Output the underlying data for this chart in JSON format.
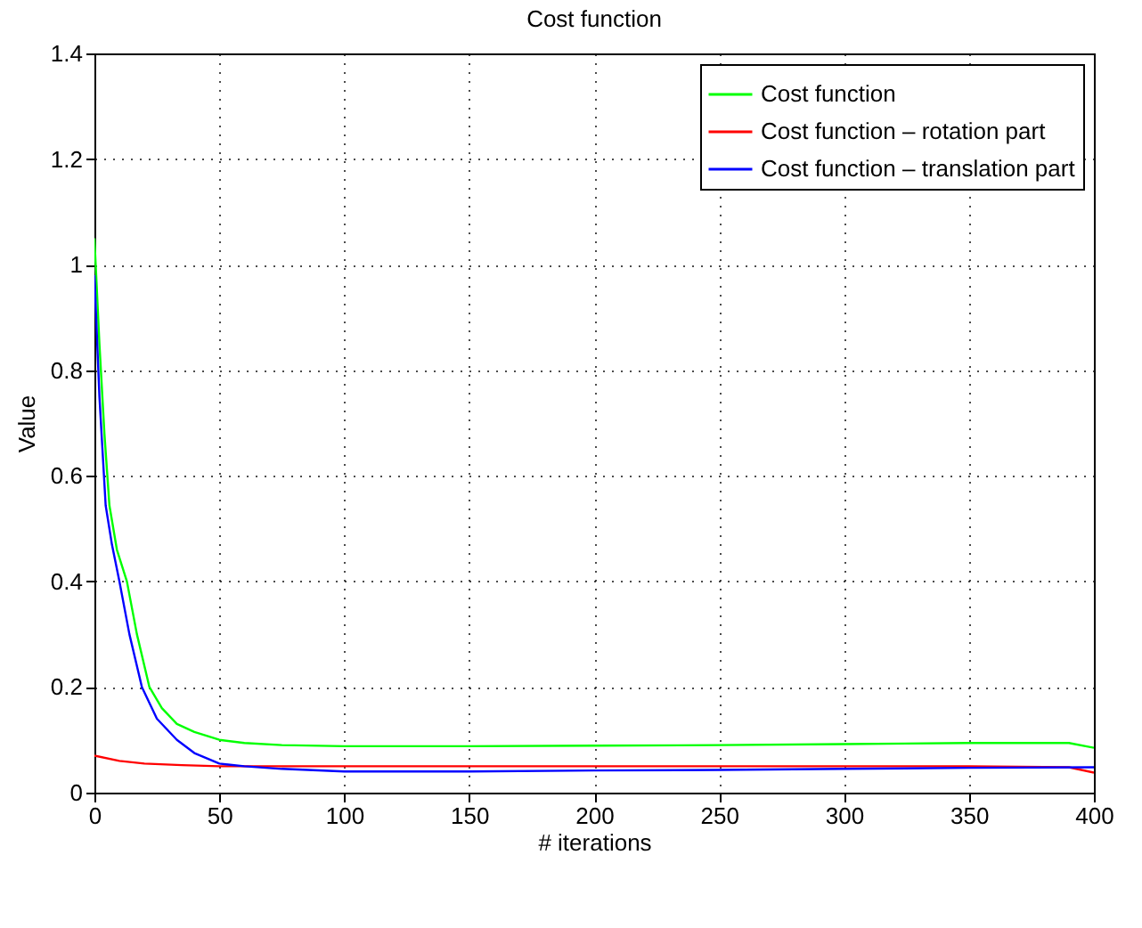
{
  "chart_data": {
    "type": "line",
    "title": "Cost function",
    "xlabel": "# iterations",
    "ylabel": "Value",
    "xlim": [
      0,
      400
    ],
    "ylim": [
      0,
      1.4
    ],
    "xticks": [
      0,
      50,
      100,
      150,
      200,
      250,
      300,
      350,
      400
    ],
    "yticks": [
      0,
      0.2,
      0.4,
      0.6,
      0.8,
      1,
      1.2,
      1.4
    ],
    "grid": true,
    "legend": "top right",
    "marker": "none",
    "line_style": "solid",
    "series": [
      {
        "name": "Cost function",
        "color": "#00ff00",
        "x": [
          0,
          2,
          4,
          6,
          9,
          13,
          17,
          22,
          27,
          33,
          40,
          50,
          60,
          75,
          100,
          150,
          200,
          250,
          300,
          350,
          390,
          400
        ],
        "values": [
          1.05,
          0.85,
          0.68,
          0.544,
          0.46,
          0.4,
          0.3,
          0.2,
          0.16,
          0.13,
          0.115,
          0.1,
          0.094,
          0.09,
          0.088,
          0.088,
          0.089,
          0.09,
          0.092,
          0.094,
          0.094,
          0.085
        ]
      },
      {
        "name": "Cost function – rotation part",
        "color": "#ff0000",
        "x": [
          0,
          10,
          20,
          35,
          50,
          100,
          200,
          300,
          350,
          390,
          400
        ],
        "values": [
          0.07,
          0.06,
          0.055,
          0.052,
          0.05,
          0.05,
          0.05,
          0.05,
          0.05,
          0.048,
          0.038
        ]
      },
      {
        "name": "Cost function – translation part",
        "color": "#0000ff",
        "x": [
          0,
          2,
          4.5,
          7,
          10,
          14,
          19,
          25,
          33,
          40,
          50,
          60,
          75,
          100,
          150,
          200,
          250,
          300,
          350,
          400
        ],
        "values": [
          0.98,
          0.75,
          0.544,
          0.47,
          0.4,
          0.3,
          0.2,
          0.14,
          0.1,
          0.075,
          0.055,
          0.05,
          0.045,
          0.04,
          0.04,
          0.042,
          0.043,
          0.045,
          0.047,
          0.048
        ]
      }
    ]
  }
}
